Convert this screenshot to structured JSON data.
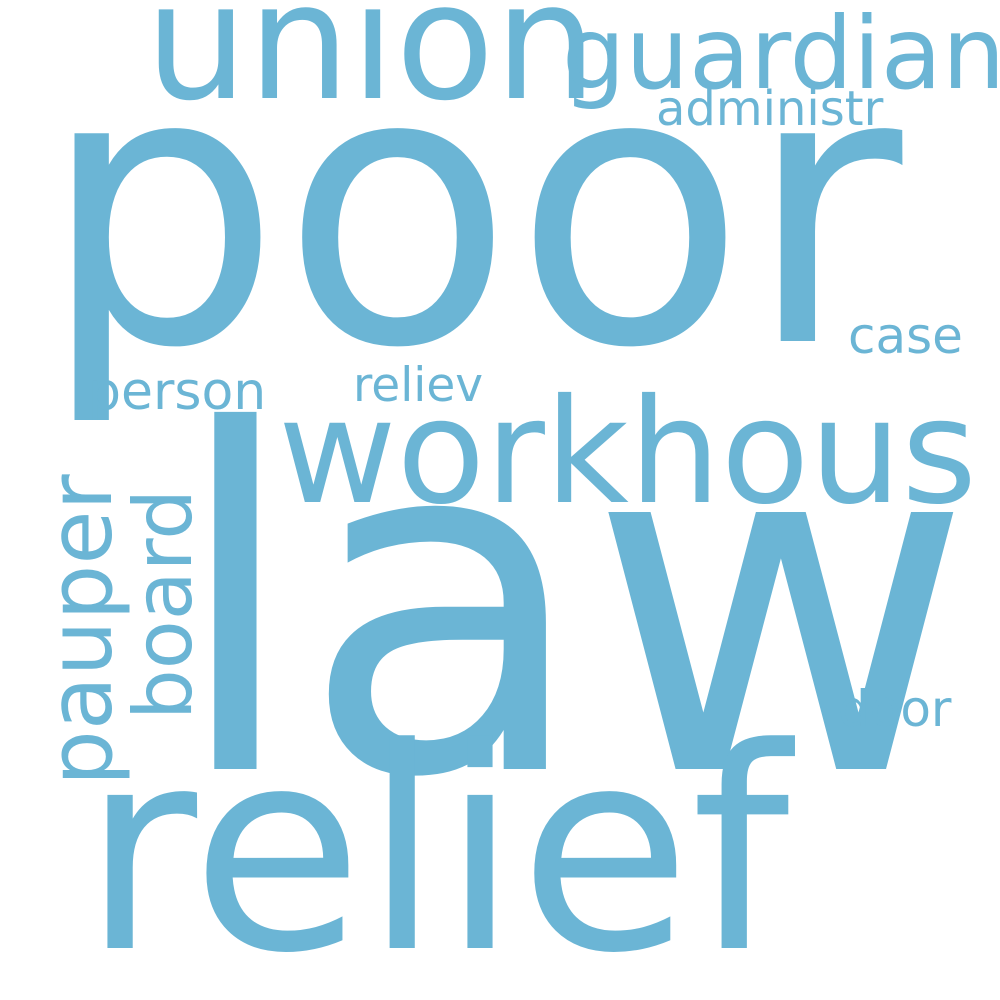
{
  "word_color": "#6bb5d5",
  "background_color": "#ffffff",
  "words": [
    {
      "key": "poor",
      "text": "poor",
      "orientation": "horizontal"
    },
    {
      "key": "law",
      "text": "law",
      "orientation": "horizontal"
    },
    {
      "key": "relief",
      "text": "relief",
      "orientation": "horizontal"
    },
    {
      "key": "union",
      "text": "union",
      "orientation": "horizontal"
    },
    {
      "key": "workhous",
      "text": "workhous",
      "orientation": "horizontal"
    },
    {
      "key": "guardian",
      "text": "guardian",
      "orientation": "horizontal"
    },
    {
      "key": "pauper",
      "text": "pauper",
      "orientation": "vertical"
    },
    {
      "key": "board",
      "text": "board",
      "orientation": "vertical"
    },
    {
      "key": "administr",
      "text": "administr",
      "orientation": "horizontal"
    },
    {
      "key": "person",
      "text": "person",
      "orientation": "horizontal"
    },
    {
      "key": "reliev",
      "text": "reliev",
      "orientation": "horizontal"
    },
    {
      "key": "case",
      "text": "case",
      "orientation": "horizontal"
    },
    {
      "key": "door",
      "text": "door",
      "orientation": "horizontal"
    }
  ]
}
